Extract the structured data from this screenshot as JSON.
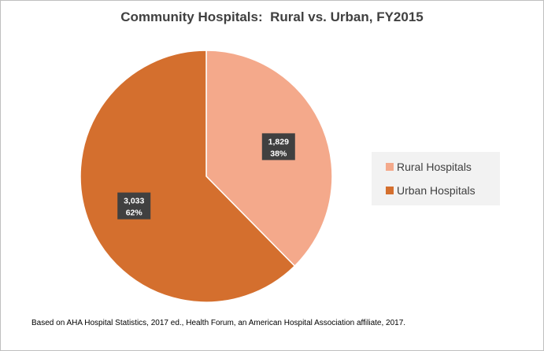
{
  "chart_data": {
    "type": "pie",
    "title": "Community Hospitals:  Rural vs. Urban, FY2015",
    "categories": [
      "Rural Hospitals",
      "Urban Hospitals"
    ],
    "values": [
      1829,
      3033
    ],
    "value_labels": [
      "1,829",
      "3,033"
    ],
    "percent_labels": [
      "38%",
      "62%"
    ],
    "colors": [
      "#f4a98b",
      "#d46f2e"
    ],
    "legend_position": "right",
    "source_note": "Based on AHA Hospital Statistics, 2017 ed., Health Forum, an American Hospital Association affiliate, 2017."
  }
}
